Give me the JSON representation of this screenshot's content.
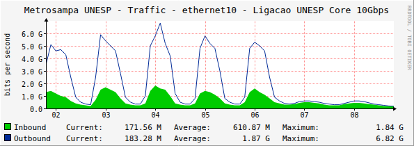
{
  "chart_data": {
    "type": "area",
    "title": "Metrosampa UNESP - Traffic - ethernet10 - Ligacao UNESP Core 10Gbps",
    "y_label": "bits per second",
    "credit": "RRDTOOL / TOBI OETIKER",
    "x": [
      1.8,
      1.9,
      2.0,
      2.1,
      2.2,
      2.3,
      2.4,
      2.5,
      2.6,
      2.7,
      2.8,
      2.9,
      3.0,
      3.1,
      3.2,
      3.3,
      3.4,
      3.5,
      3.6,
      3.7,
      3.8,
      3.9,
      4.0,
      4.1,
      4.2,
      4.3,
      4.4,
      4.5,
      4.6,
      4.7,
      4.8,
      4.9,
      5.0,
      5.1,
      5.2,
      5.3,
      5.4,
      5.5,
      5.6,
      5.7,
      5.8,
      5.9,
      6.0,
      6.1,
      6.2,
      6.3,
      6.4,
      6.5,
      6.6,
      6.7,
      6.8,
      6.9,
      7.0,
      7.1,
      7.2,
      7.3,
      7.4,
      7.5,
      7.6,
      7.7,
      7.8,
      7.9,
      8.0,
      8.1,
      8.2,
      8.3,
      8.4,
      8.5,
      8.6,
      8.7,
      8.8
    ],
    "xlim": [
      1.8,
      8.8
    ],
    "xticks": [
      {
        "value": 2,
        "label": "02"
      },
      {
        "value": 3,
        "label": "03"
      },
      {
        "value": 4,
        "label": "04"
      },
      {
        "value": 5,
        "label": "05"
      },
      {
        "value": 6,
        "label": "06"
      },
      {
        "value": 7,
        "label": "07"
      },
      {
        "value": 8,
        "label": "08"
      }
    ],
    "ylim": [
      0,
      7000000000
    ],
    "yticks": [
      {
        "value": 0,
        "label": "0.0"
      },
      {
        "value": 1000000000,
        "label": "1.0 G"
      },
      {
        "value": 2000000000,
        "label": "2.0 G"
      },
      {
        "value": 3000000000,
        "label": "3.0 G"
      },
      {
        "value": 4000000000,
        "label": "4.0 G"
      },
      {
        "value": 5000000000,
        "label": "5.0 G"
      },
      {
        "value": 6000000000,
        "label": "6.0 G"
      }
    ],
    "grid": true,
    "legend_fields": [
      "Current:",
      "Average:",
      "Maximum:"
    ],
    "series": [
      {
        "name": "Inbound",
        "type": "area",
        "color": "#00cc00",
        "stats": [
          {
            "value": 171560000,
            "label": "171.56 M"
          },
          {
            "value": 610870000,
            "label": "610.87 M"
          },
          {
            "value": 1840000000,
            "label": "1.84 G"
          }
        ],
        "values": [
          1300000000,
          1400000000,
          1200000000,
          1000000000,
          900000000,
          600000000,
          400000000,
          300000000,
          250000000,
          200000000,
          700000000,
          1500000000,
          1700000000,
          1500000000,
          1300000000,
          800000000,
          400000000,
          300000000,
          250000000,
          250000000,
          400000000,
          1400000000,
          1840000000,
          1600000000,
          1500000000,
          1000000000,
          400000000,
          300000000,
          250000000,
          250000000,
          400000000,
          1200000000,
          1400000000,
          1300000000,
          1100000000,
          800000000,
          400000000,
          300000000,
          250000000,
          250000000,
          500000000,
          1300000000,
          1600000000,
          1300000000,
          1100000000,
          800000000,
          500000000,
          400000000,
          300000000,
          300000000,
          350000000,
          450000000,
          500000000,
          500000000,
          450000000,
          400000000,
          300000000,
          250000000,
          250000000,
          250000000,
          350000000,
          400000000,
          450000000,
          450000000,
          400000000,
          350000000,
          300000000,
          250000000,
          200000000,
          180000000,
          170000000
        ]
      },
      {
        "name": "Outbound",
        "type": "line",
        "color": "#002a97",
        "stats": [
          {
            "value": 183280000,
            "label": "183.28 M"
          },
          {
            "value": 1870000000,
            "label": "1.87 G"
          },
          {
            "value": 6820000000,
            "label": "6.82 G"
          }
        ],
        "values": [
          3500000000,
          5100000000,
          4600000000,
          4700000000,
          4300000000,
          2500000000,
          900000000,
          500000000,
          350000000,
          300000000,
          2500000000,
          5900000000,
          5400000000,
          5000000000,
          4600000000,
          2800000000,
          900000000,
          500000000,
          350000000,
          350000000,
          1000000000,
          5000000000,
          5800000000,
          6820000000,
          5200000000,
          4200000000,
          1200000000,
          500000000,
          350000000,
          350000000,
          800000000,
          4800000000,
          5800000000,
          5200000000,
          4800000000,
          3000000000,
          800000000,
          500000000,
          350000000,
          350000000,
          900000000,
          4800000000,
          5300000000,
          5000000000,
          4600000000,
          2500000000,
          900000000,
          600000000,
          400000000,
          350000000,
          400000000,
          550000000,
          600000000,
          600000000,
          550000000,
          500000000,
          400000000,
          350000000,
          300000000,
          300000000,
          400000000,
          500000000,
          600000000,
          600000000,
          550000000,
          450000000,
          350000000,
          300000000,
          250000000,
          200000000,
          180000000
        ]
      }
    ]
  }
}
